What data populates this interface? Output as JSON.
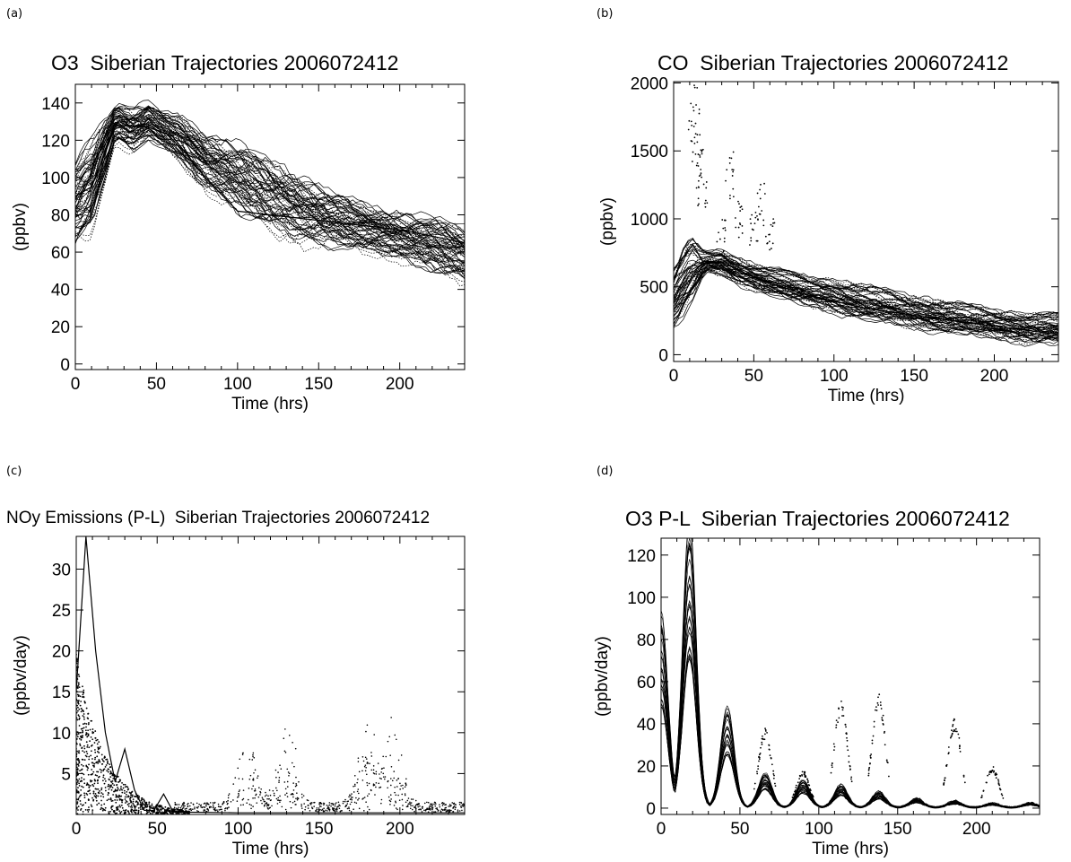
{
  "chart_data": [
    {
      "panel": "(a)",
      "type": "line",
      "title": "O3  Siberian Trajectories 2006072412",
      "xlabel": "Time (hrs)",
      "ylabel": "(ppbv)",
      "xlim": [
        0,
        240
      ],
      "ylim": [
        -3,
        150
      ],
      "xticks": [
        "0",
        "50",
        "100",
        "150",
        "200"
      ],
      "yticks": [
        "0",
        "20",
        "40",
        "60",
        "80",
        "100",
        "120",
        "140"
      ],
      "series_count": 60,
      "mean_trace": {
        "x": [
          0,
          10,
          25,
          35,
          45,
          55,
          65,
          80,
          100,
          120,
          140,
          160,
          180,
          200,
          220,
          240
        ],
        "y": [
          85,
          95,
          130,
          125,
          130,
          125,
          120,
          108,
          100,
          90,
          82,
          77,
          72,
          68,
          64,
          58
        ]
      },
      "spread": [
        18,
        20,
        8,
        10,
        8,
        8,
        10,
        12,
        15,
        15,
        14,
        12,
        10,
        10,
        12,
        12
      ],
      "highlight": {
        "x": [
          0,
          10,
          25,
          45,
          60,
          80,
          100,
          150,
          200,
          240
        ],
        "y": [
          90,
          95,
          128,
          127,
          122,
          100,
          82,
          77,
          72,
          65
        ]
      }
    },
    {
      "panel": "(b)",
      "type": "line",
      "title": "CO  Siberian Trajectories 2006072412",
      "xlabel": "Time (hrs)",
      "ylabel": "(ppbv)",
      "xlim": [
        0,
        240
      ],
      "ylim": [
        -50,
        2010
      ],
      "xticks": [
        "0",
        "50",
        "100",
        "150",
        "200"
      ],
      "yticks": [
        "0",
        "500",
        "1000",
        "1500",
        "2000"
      ],
      "series_count": 55,
      "mean_trace": {
        "x": [
          0,
          10,
          20,
          30,
          40,
          50,
          60,
          80,
          100,
          120,
          150,
          180,
          200,
          220,
          240
        ],
        "y": [
          420,
          600,
          680,
          680,
          620,
          580,
          540,
          480,
          440,
          380,
          320,
          260,
          230,
          200,
          190
        ]
      },
      "spread": [
        180,
        200,
        60,
        80,
        80,
        80,
        80,
        90,
        100,
        100,
        100,
        90,
        90,
        90,
        90
      ],
      "highlight": {
        "x": [
          0,
          5,
          12,
          18,
          30,
          50,
          80,
          120,
          180,
          240
        ],
        "y": [
          550,
          700,
          810,
          690,
          680,
          570,
          450,
          340,
          240,
          150
        ]
      },
      "outliers": {
        "x": [
          12,
          14,
          16,
          18,
          30,
          35,
          40,
          50,
          55,
          60
        ],
        "y": [
          2000,
          1850,
          1600,
          1400,
          1000,
          1500,
          1150,
          1050,
          1260,
          1000
        ]
      }
    },
    {
      "panel": "(c)",
      "type": "scatter",
      "title": "NOy Emissions (P-L)  Siberian Trajectories 2006072412",
      "xlabel": "Time (hrs)",
      "ylabel": "(ppbv/day)",
      "xlim": [
        0,
        240
      ],
      "ylim": [
        0,
        34
      ],
      "xticks": [
        "0",
        "50",
        "100",
        "150",
        "200"
      ],
      "yticks": [
        "5",
        "10",
        "15",
        "20",
        "25",
        "30"
      ],
      "highlight": {
        "x": [
          0,
          6,
          12,
          18,
          24,
          30,
          36,
          42,
          48,
          54,
          60,
          100,
          150,
          200,
          240
        ],
        "y": [
          15,
          34,
          20,
          10,
          4,
          8,
          3,
          0.5,
          0.5,
          2.5,
          0.3,
          0.2,
          0.2,
          0.2,
          0.2
        ]
      }
    },
    {
      "panel": "(d)",
      "type": "scatter",
      "title": "O3 P-L  Siberian Trajectories 2006072412",
      "xlabel": "Time (hrs)",
      "ylabel": "(ppbv/day)",
      "xlim": [
        0,
        240
      ],
      "ylim": [
        -3,
        128
      ],
      "xticks": [
        "0",
        "50",
        "100",
        "150",
        "200"
      ],
      "yticks": [
        "0",
        "20",
        "40",
        "60",
        "80",
        "100",
        "120"
      ],
      "diurnal_peaks": [
        {
          "x": 0,
          "y": 85
        },
        {
          "x": 18,
          "y": 125
        },
        {
          "x": 42,
          "y": 44
        },
        {
          "x": 66,
          "y": 15
        },
        {
          "x": 90,
          "y": 12
        },
        {
          "x": 114,
          "y": 10
        },
        {
          "x": 138,
          "y": 7
        },
        {
          "x": 162,
          "y": 4
        },
        {
          "x": 186,
          "y": 3
        },
        {
          "x": 210,
          "y": 2
        },
        {
          "x": 234,
          "y": 2
        }
      ],
      "outlier_peaks": [
        {
          "x": 114,
          "y": 52
        },
        {
          "x": 138,
          "y": 55
        },
        {
          "x": 186,
          "y": 43
        },
        {
          "x": 66,
          "y": 38
        },
        {
          "x": 90,
          "y": 18
        },
        {
          "x": 210,
          "y": 20
        }
      ]
    }
  ]
}
